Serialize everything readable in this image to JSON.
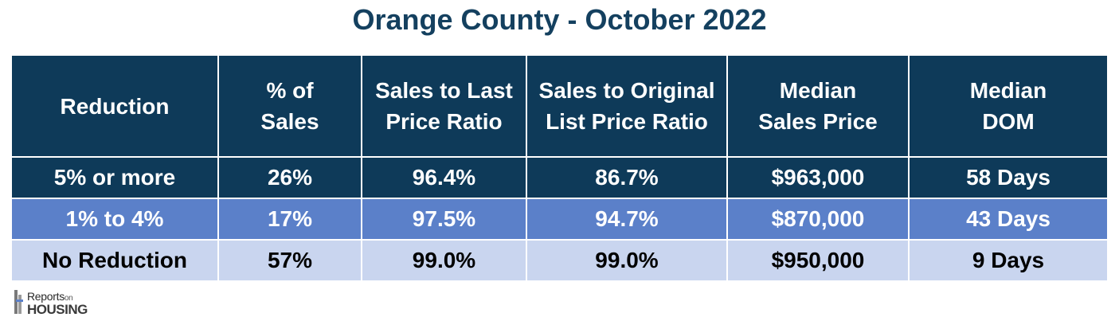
{
  "title": "Orange County - October 2022",
  "chart_data": {
    "type": "table",
    "columns": [
      {
        "line1": "Reduction",
        "line2": ""
      },
      {
        "line1": "% of",
        "line2": "Sales"
      },
      {
        "line1": "Sales to Last",
        "line2": "Price Ratio"
      },
      {
        "line1": "Sales to Original",
        "line2": "List Price Ratio"
      },
      {
        "line1": "Median",
        "line2": "Sales Price"
      },
      {
        "line1": "Median",
        "line2": "DOM"
      }
    ],
    "rows": [
      [
        "5% or more",
        "26%",
        "96.4%",
        "86.7%",
        "$963,000",
        "58 Days"
      ],
      [
        "1% to 4%",
        "17%",
        "97.5%",
        "94.7%",
        "$870,000",
        "43 Days"
      ],
      [
        "No Reduction",
        "57%",
        "99.0%",
        "99.0%",
        "$950,000",
        "9 Days"
      ]
    ]
  },
  "logo": {
    "line1": "Reports",
    "line1_small": "on",
    "line2": "HOUSING"
  },
  "colors": {
    "header": "#0e3a59",
    "row1": "#0e3a59",
    "row2": "#5b80c9",
    "row3": "#c9d5ef",
    "title": "#14405f"
  }
}
